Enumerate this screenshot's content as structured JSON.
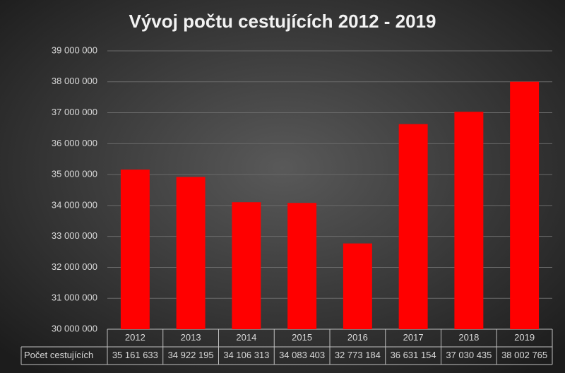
{
  "chart_data": {
    "type": "bar",
    "title": "Vývoj počtu cestujících 2012 - 2019",
    "categories": [
      "2012",
      "2013",
      "2014",
      "2015",
      "2016",
      "2017",
      "2018",
      "2019"
    ],
    "series": [
      {
        "name": "Počet cestujících",
        "color": "#ff0000",
        "values": [
          35161633,
          34922195,
          34106313,
          34083403,
          32773184,
          36631154,
          37030435,
          38002765
        ],
        "value_labels": [
          "35 161 633",
          "34 922 195",
          "34 106 313",
          "34 083 403",
          "32 773 184",
          "36 631 154",
          "37 030 435",
          "38 002 765"
        ]
      }
    ],
    "ylim": [
      30000000,
      39000000
    ],
    "yticks": [
      {
        "value": 30000000,
        "label": "30 000 000"
      },
      {
        "value": 31000000,
        "label": "31 000 000"
      },
      {
        "value": 32000000,
        "label": "32 000 000"
      },
      {
        "value": 33000000,
        "label": "33 000 000"
      },
      {
        "value": 34000000,
        "label": "34 000 000"
      },
      {
        "value": 35000000,
        "label": "35 000 000"
      },
      {
        "value": 36000000,
        "label": "36 000 000"
      },
      {
        "value": 37000000,
        "label": "37 000 000"
      },
      {
        "value": 38000000,
        "label": "38 000 000"
      },
      {
        "value": 39000000,
        "label": "39 000 000"
      }
    ],
    "grid": true
  }
}
